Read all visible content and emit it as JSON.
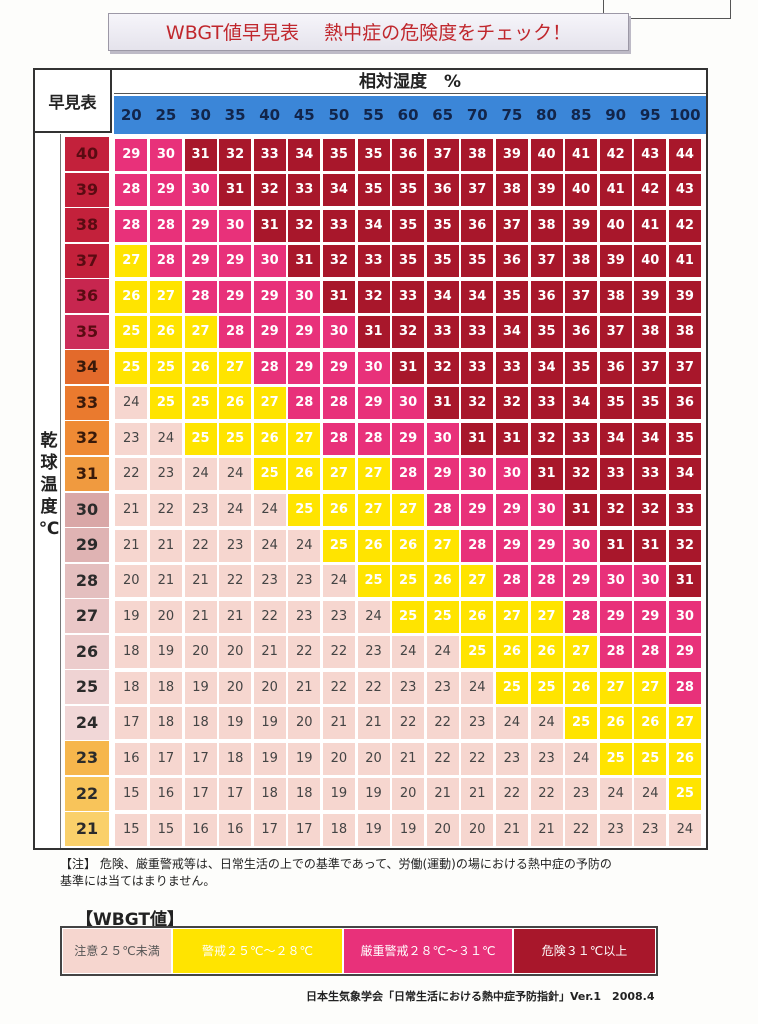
{
  "title": "WBGT値早見表　 熱中症の危険度をチェック！",
  "table": {
    "corner_label": "早見表",
    "humidity_title": "相対湿度　%",
    "temperature_axis_chars": [
      "乾",
      "球",
      "温",
      "度",
      "℃"
    ],
    "humidity_columns": [
      "20",
      "25",
      "30",
      "35",
      "40",
      "45",
      "50",
      "55",
      "60",
      "65",
      "70",
      "75",
      "80",
      "85",
      "90",
      "95",
      "100"
    ],
    "rows": [
      {
        "temp": "40",
        "values": [
          29,
          30,
          31,
          32,
          33,
          34,
          35,
          35,
          36,
          37,
          38,
          39,
          40,
          41,
          42,
          43,
          44
        ],
        "levels": [
          2,
          2,
          3,
          3,
          3,
          3,
          3,
          3,
          3,
          3,
          3,
          3,
          3,
          3,
          3,
          3,
          3
        ]
      },
      {
        "temp": "39",
        "values": [
          28,
          29,
          30,
          31,
          32,
          33,
          34,
          35,
          35,
          36,
          37,
          38,
          39,
          40,
          41,
          42,
          43
        ],
        "levels": [
          2,
          2,
          2,
          3,
          3,
          3,
          3,
          3,
          3,
          3,
          3,
          3,
          3,
          3,
          3,
          3,
          3
        ]
      },
      {
        "temp": "38",
        "values": [
          28,
          28,
          29,
          30,
          31,
          32,
          33,
          34,
          35,
          35,
          36,
          37,
          38,
          39,
          40,
          41,
          42
        ],
        "levels": [
          2,
          2,
          2,
          2,
          3,
          3,
          3,
          3,
          3,
          3,
          3,
          3,
          3,
          3,
          3,
          3,
          3
        ]
      },
      {
        "temp": "37",
        "values": [
          27,
          28,
          29,
          29,
          30,
          31,
          32,
          33,
          35,
          35,
          35,
          36,
          37,
          38,
          39,
          40,
          41
        ],
        "levels": [
          1,
          2,
          2,
          2,
          2,
          3,
          3,
          3,
          3,
          3,
          3,
          3,
          3,
          3,
          3,
          3,
          3
        ]
      },
      {
        "temp": "36",
        "values": [
          26,
          27,
          28,
          29,
          29,
          30,
          31,
          32,
          33,
          34,
          34,
          35,
          36,
          37,
          38,
          39,
          39
        ],
        "levels": [
          1,
          1,
          2,
          2,
          2,
          2,
          3,
          3,
          3,
          3,
          3,
          3,
          3,
          3,
          3,
          3,
          3
        ]
      },
      {
        "temp": "35",
        "values": [
          25,
          26,
          27,
          28,
          29,
          29,
          30,
          31,
          32,
          33,
          33,
          34,
          35,
          36,
          37,
          38,
          38
        ],
        "levels": [
          1,
          1,
          1,
          2,
          2,
          2,
          2,
          3,
          3,
          3,
          3,
          3,
          3,
          3,
          3,
          3,
          3
        ]
      },
      {
        "temp": "34",
        "values": [
          25,
          25,
          26,
          27,
          28,
          29,
          29,
          30,
          31,
          32,
          33,
          33,
          34,
          35,
          36,
          37,
          37
        ],
        "levels": [
          1,
          1,
          1,
          1,
          2,
          2,
          2,
          2,
          3,
          3,
          3,
          3,
          3,
          3,
          3,
          3,
          3
        ]
      },
      {
        "temp": "33",
        "values": [
          24,
          25,
          25,
          26,
          27,
          28,
          28,
          29,
          30,
          31,
          32,
          32,
          33,
          34,
          35,
          35,
          36
        ],
        "levels": [
          0,
          1,
          1,
          1,
          1,
          2,
          2,
          2,
          2,
          3,
          3,
          3,
          3,
          3,
          3,
          3,
          3
        ]
      },
      {
        "temp": "32",
        "values": [
          23,
          24,
          25,
          25,
          26,
          27,
          28,
          28,
          29,
          30,
          31,
          31,
          32,
          33,
          34,
          34,
          35
        ],
        "levels": [
          0,
          0,
          1,
          1,
          1,
          1,
          2,
          2,
          2,
          2,
          3,
          3,
          3,
          3,
          3,
          3,
          3
        ]
      },
      {
        "temp": "31",
        "values": [
          22,
          23,
          24,
          24,
          25,
          26,
          27,
          27,
          28,
          29,
          30,
          30,
          31,
          32,
          33,
          33,
          34
        ],
        "levels": [
          0,
          0,
          0,
          0,
          1,
          1,
          1,
          1,
          2,
          2,
          2,
          2,
          3,
          3,
          3,
          3,
          3
        ]
      },
      {
        "temp": "30",
        "values": [
          21,
          22,
          23,
          24,
          24,
          25,
          26,
          27,
          27,
          28,
          29,
          29,
          30,
          31,
          32,
          32,
          33
        ],
        "levels": [
          0,
          0,
          0,
          0,
          0,
          1,
          1,
          1,
          1,
          2,
          2,
          2,
          2,
          3,
          3,
          3,
          3
        ]
      },
      {
        "temp": "29",
        "values": [
          21,
          21,
          22,
          23,
          24,
          24,
          25,
          26,
          26,
          27,
          28,
          29,
          29,
          30,
          31,
          31,
          32
        ],
        "levels": [
          0,
          0,
          0,
          0,
          0,
          0,
          1,
          1,
          1,
          1,
          2,
          2,
          2,
          2,
          3,
          3,
          3
        ]
      },
      {
        "temp": "28",
        "values": [
          20,
          21,
          21,
          22,
          23,
          23,
          24,
          25,
          25,
          26,
          27,
          28,
          28,
          29,
          30,
          30,
          31
        ],
        "levels": [
          0,
          0,
          0,
          0,
          0,
          0,
          0,
          1,
          1,
          1,
          1,
          2,
          2,
          2,
          2,
          2,
          3
        ]
      },
      {
        "temp": "27",
        "values": [
          19,
          20,
          21,
          21,
          22,
          23,
          23,
          24,
          25,
          25,
          26,
          27,
          27,
          28,
          29,
          29,
          30
        ],
        "levels": [
          0,
          0,
          0,
          0,
          0,
          0,
          0,
          0,
          1,
          1,
          1,
          1,
          1,
          2,
          2,
          2,
          2
        ]
      },
      {
        "temp": "26",
        "values": [
          18,
          19,
          20,
          20,
          21,
          22,
          22,
          23,
          24,
          24,
          25,
          26,
          26,
          27,
          28,
          28,
          29
        ],
        "levels": [
          0,
          0,
          0,
          0,
          0,
          0,
          0,
          0,
          0,
          0,
          1,
          1,
          1,
          1,
          2,
          2,
          2
        ]
      },
      {
        "temp": "25",
        "values": [
          18,
          18,
          19,
          20,
          20,
          21,
          22,
          22,
          23,
          23,
          24,
          25,
          25,
          26,
          27,
          27,
          28
        ],
        "levels": [
          0,
          0,
          0,
          0,
          0,
          0,
          0,
          0,
          0,
          0,
          0,
          1,
          1,
          1,
          1,
          1,
          2
        ]
      },
      {
        "temp": "24",
        "values": [
          17,
          18,
          18,
          19,
          19,
          20,
          21,
          21,
          22,
          22,
          23,
          24,
          24,
          25,
          26,
          26,
          27
        ],
        "levels": [
          0,
          0,
          0,
          0,
          0,
          0,
          0,
          0,
          0,
          0,
          0,
          0,
          0,
          1,
          1,
          1,
          1
        ]
      },
      {
        "temp": "23",
        "values": [
          16,
          17,
          17,
          18,
          19,
          19,
          20,
          20,
          21,
          22,
          22,
          23,
          23,
          24,
          25,
          25,
          26
        ],
        "levels": [
          0,
          0,
          0,
          0,
          0,
          0,
          0,
          0,
          0,
          0,
          0,
          0,
          0,
          0,
          1,
          1,
          1
        ]
      },
      {
        "temp": "22",
        "values": [
          15,
          16,
          17,
          17,
          18,
          18,
          19,
          19,
          20,
          21,
          21,
          22,
          22,
          23,
          24,
          24,
          25
        ],
        "levels": [
          0,
          0,
          0,
          0,
          0,
          0,
          0,
          0,
          0,
          0,
          0,
          0,
          0,
          0,
          0,
          0,
          1
        ]
      },
      {
        "temp": "21",
        "values": [
          15,
          15,
          16,
          16,
          17,
          17,
          18,
          19,
          19,
          20,
          20,
          21,
          21,
          22,
          23,
          23,
          24
        ],
        "levels": [
          0,
          0,
          0,
          0,
          0,
          0,
          0,
          0,
          0,
          0,
          0,
          0,
          0,
          0,
          0,
          0,
          0
        ]
      }
    ]
  },
  "level_colors": [
    "#f6d6cf",
    "#ffe400",
    "#e8317a",
    "#a8172b"
  ],
  "row_header_colors": [
    "#c3213b",
    "#c3213b",
    "#c3213b",
    "#c3213b",
    "#c7264f",
    "#cc2e5a",
    "#e36a2b",
    "#ea7a2e",
    "#ef8a34",
    "#f09a3f",
    "#d9a7a7",
    "#dfb3b3",
    "#e4bfbf",
    "#eac7c7",
    "#eccccc",
    "#efd3d3",
    "#f1d7d7",
    "#f6b64c",
    "#f8c45a",
    "#fad06a"
  ],
  "row_header_text_colors": [
    "#5a0b12",
    "#5a0b12",
    "#5a0b12",
    "#5a0b12",
    "#5a0b12",
    "#5a0b12",
    "#3a1a0a",
    "#3a1a0a",
    "#3a1a0a",
    "#3a1a0a",
    "#2b2b2b",
    "#2b2b2b",
    "#2b2b2b",
    "#2b2b2b",
    "#2b2b2b",
    "#2b2b2b",
    "#2b2b2b",
    "#2b2b2b",
    "#2b2b2b",
    "#2b2b2b"
  ],
  "note": {
    "line1": "【注】 危険、厳重警戒等は、日常生活の上での基準であって、労働(運動)の場における熱中症の予防の",
    "line2": "基準には当てはまりません。"
  },
  "legend": {
    "title": "【WBGT値】",
    "items": [
      {
        "label": "注意２５℃未満",
        "color": "#f6d6cf",
        "text_color": "#555"
      },
      {
        "label": "警戒２５℃～２８℃",
        "color": "#ffe400",
        "text_color": "#fff"
      },
      {
        "label": "厳重警戒２８℃～３１℃",
        "color": "#e8317a",
        "text_color": "#fff"
      },
      {
        "label": "危険３１℃以上",
        "color": "#a8172b",
        "text_color": "#fff"
      }
    ]
  },
  "credit": "日本生気象学会「日常生活における熱中症予防指針」Ver.1　2008.4"
}
